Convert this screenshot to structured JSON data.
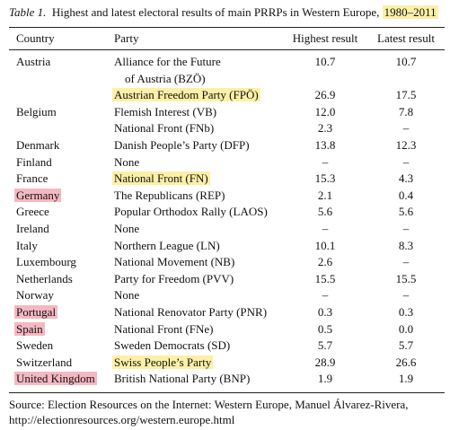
{
  "caption": {
    "label": "Table 1.",
    "text": "Highest and latest electoral results of main PRRPs in Western Europe,",
    "period": "1980–2011"
  },
  "table": {
    "columns": [
      "Country",
      "Party",
      "Highest result",
      "Latest result"
    ],
    "rows": [
      [
        "Austria",
        [
          "Alliance for the Future",
          "of Austria (BZÖ)"
        ],
        "10.7",
        "10.7"
      ],
      [
        null,
        "Austrian Freedom Party (FPÖ)",
        "26.9",
        "17.5"
      ],
      [
        "Belgium",
        "Flemish Interest (VB)",
        "12.0",
        "7.8"
      ],
      [
        null,
        "National Front (FNb)",
        "2.3",
        "–"
      ],
      [
        "Denmark",
        "Danish People’s Party (DFP)",
        "13.8",
        "12.3"
      ],
      [
        "Finland",
        "None",
        "–",
        "–"
      ],
      [
        "France",
        "National Front (FN)",
        "15.3",
        "4.3"
      ],
      [
        "Germany",
        "The Republicans (REP)",
        "2.1",
        "0.4"
      ],
      [
        "Greece",
        "Popular Orthodox Rally (LAOS)",
        "5.6",
        "5.6"
      ],
      [
        "Ireland",
        "None",
        "–",
        "–"
      ],
      [
        "Italy",
        "Northern League (LN)",
        "10.1",
        "8.3"
      ],
      [
        "Luxembourg",
        "National Movement (NB)",
        "2.6",
        "–"
      ],
      [
        "Netherlands",
        "Party for Freedom (PVV)",
        "15.5",
        "15.5"
      ],
      [
        "Norway",
        "None",
        "–",
        "–"
      ],
      [
        "Portugal",
        "National Renovator Party (PNR)",
        "0.3",
        "0.3"
      ],
      [
        "Spain",
        "National Front (FNe)",
        "0.5",
        "0.0"
      ],
      [
        "Sweden",
        "Sweden Democrats (SD)",
        "5.7",
        "5.7"
      ],
      [
        "Switzerland",
        "Swiss People’s Party",
        "28.9",
        "26.6"
      ],
      [
        "United Kingdom",
        "British National Party (BNP)",
        "1.9",
        "1.9"
      ]
    ]
  },
  "source": [
    "Source: Election Resources on the Internet: Western Europe, Manuel Álvarez-Rivera,",
    "http://electionresources.org/western.europe.html"
  ]
}
